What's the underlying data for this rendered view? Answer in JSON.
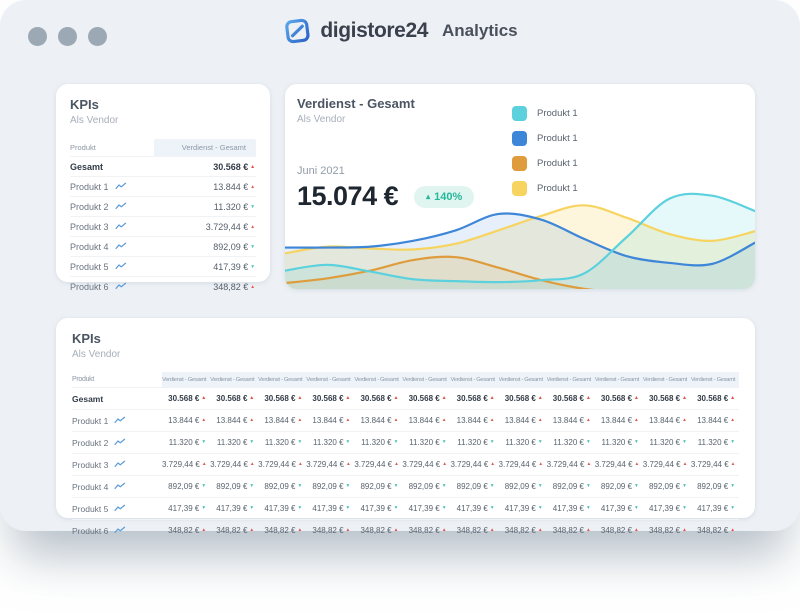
{
  "header": {
    "brand": "digistore24",
    "app": "Analytics"
  },
  "colors": {
    "window_bg": "#EDF1F5",
    "trend_up": "#E2594C",
    "trend_down": "#3FBFAE",
    "badge_bg": "#E0F5EF",
    "badge_text": "#27B79C",
    "header_cell_bg": "#EDF3F9"
  },
  "kpi_card": {
    "title": "KPIs",
    "subtitle": "Als Vendor",
    "col_product": "Produkt",
    "col_value": "Verdienst - Gesamt",
    "rows": [
      {
        "label": "Gesamt",
        "value": "30.568 €",
        "trend": "up",
        "bold": true,
        "spark": false
      },
      {
        "label": "Produkt 1",
        "value": "13.844 €",
        "trend": "up",
        "bold": false,
        "spark": true
      },
      {
        "label": "Produkt 2",
        "value": "11.320 €",
        "trend": "down",
        "bold": false,
        "spark": true
      },
      {
        "label": "Produkt 3",
        "value": "3.729,44 €",
        "trend": "up",
        "bold": false,
        "spark": true
      },
      {
        "label": "Produkt 4",
        "value": "892,09 €",
        "trend": "down",
        "bold": false,
        "spark": true
      },
      {
        "label": "Produkt 5",
        "value": "417,39 €",
        "trend": "down",
        "bold": false,
        "spark": true
      },
      {
        "label": "Produkt 6",
        "value": "348,82 €",
        "trend": "up",
        "bold": false,
        "spark": true
      }
    ]
  },
  "chart_card": {
    "title": "Verdienst - Gesamt",
    "subtitle": "Als Vendor",
    "period": "Juni 2021",
    "total": "15.074 €",
    "badge": {
      "arrow": "▴",
      "text": "140%"
    },
    "legend": [
      {
        "label": "Produkt 1",
        "color": "#5CD1DE"
      },
      {
        "label": "Produkt 1",
        "color": "#3E86D8"
      },
      {
        "label": "Produkt 1",
        "color": "#DE9C3C"
      },
      {
        "label": "Produkt 1",
        "color": "#F7D45F"
      }
    ],
    "chart_data": {
      "type": "area",
      "title": "Verdienst - Gesamt",
      "xlabel": "",
      "ylabel": "",
      "x_labels": [],
      "ylim": [
        0,
        1
      ],
      "grid": false,
      "legend_position": "top-center",
      "series": [
        {
          "name": "Produkt 1",
          "color": "#DE9C3C",
          "fill_opacity": 0.12,
          "values": [
            0.02,
            0.07,
            0.15,
            0.26,
            0.29,
            0.18,
            0.05,
            -0.04,
            -0.08,
            -0.1,
            -0.1,
            -0.1
          ]
        },
        {
          "name": "Produkt 1",
          "color": "#F7D45F",
          "fill_opacity": 0.22,
          "values": [
            0.33,
            0.4,
            0.38,
            0.37,
            0.43,
            0.57,
            0.72,
            0.83,
            0.7,
            0.53,
            0.46,
            0.56
          ]
        },
        {
          "name": "Produkt 1",
          "color": "#3E86D8",
          "fill_opacity": 0.13,
          "values": [
            0.39,
            0.39,
            0.4,
            0.46,
            0.57,
            0.74,
            0.68,
            0.48,
            0.3,
            0.23,
            0.22,
            0.44
          ]
        },
        {
          "name": "Produkt 1",
          "color": "#5CD1DE",
          "fill_opacity": 0.16,
          "values": [
            0.15,
            0.21,
            0.14,
            0.06,
            0.04,
            0.03,
            0.05,
            0.12,
            0.5,
            0.9,
            0.93,
            0.77
          ]
        }
      ]
    }
  },
  "wide_card": {
    "title": "KPIs",
    "subtitle": "Als Vendor",
    "col_product": "Produkt",
    "col_value": "Verdienst - Gesamt",
    "value_columns": 12,
    "rows": [
      {
        "label": "Gesamt",
        "value": "30.568 €",
        "trend": "up",
        "bold": true,
        "spark": false
      },
      {
        "label": "Produkt 1",
        "value": "13.844 €",
        "trend": "up",
        "bold": false,
        "spark": true
      },
      {
        "label": "Produkt 2",
        "value": "11.320 €",
        "trend": "down",
        "bold": false,
        "spark": true
      },
      {
        "label": "Produkt 3",
        "value": "3.729,44 €",
        "trend": "up",
        "bold": false,
        "spark": true
      },
      {
        "label": "Produkt 4",
        "value": "892,09 €",
        "trend": "down",
        "bold": false,
        "spark": true
      },
      {
        "label": "Produkt 5",
        "value": "417,39 €",
        "trend": "down",
        "bold": false,
        "spark": true
      },
      {
        "label": "Produkt 6",
        "value": "348,82 €",
        "trend": "up",
        "bold": false,
        "spark": true
      }
    ]
  }
}
